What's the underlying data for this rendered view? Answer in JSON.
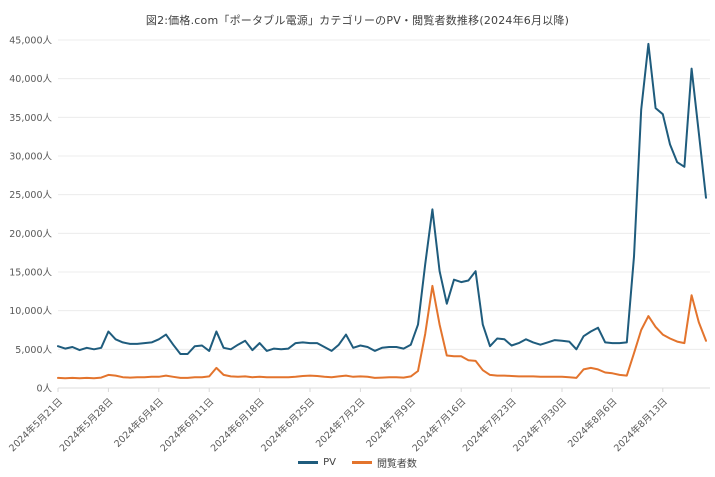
{
  "title": "図2:価格.com「ポータブル電源」カテゴリーのPV・閲覧者数推移(2024年6月以降)",
  "colors": {
    "pv_line": "#1f5c7d",
    "viewers_line": "#e3742d",
    "grid": "#ececec",
    "axis_line": "#dcdcdc",
    "tick_mark": "#d9d9d9",
    "axis_text": "#595959",
    "title_text": "#3f3f3f"
  },
  "legend": {
    "items": [
      {
        "label": "PV"
      },
      {
        "label": "閲覧者数"
      }
    ]
  },
  "chart_data": {
    "type": "line",
    "grid": "horizontal",
    "legend_position": "bottom-center",
    "ylim": [
      0,
      45000
    ],
    "y_tick_step": 5000,
    "y_tick_labels": [
      "0人",
      "5,000人",
      "10,000人",
      "15,000人",
      "20,000人",
      "25,000人",
      "30,000人",
      "35,000人",
      "40,000人",
      "45,000人"
    ],
    "x_tick_labels": [
      "2024年5月21日",
      "2024年5月28日",
      "2024年6月4日",
      "2024年6月11日",
      "2024年6月18日",
      "2024年6月25日",
      "2024年7月2日",
      "2024年7月9日",
      "2024年7月16日",
      "2024年7月23日",
      "2024年7月30日",
      "2024年8月6日",
      "2024年8月13日"
    ],
    "x_points_per_tick": 7,
    "x_unit": "day",
    "series": [
      {
        "name": "PV",
        "color": "#1f5c7d",
        "values": [
          5400,
          5100,
          5300,
          4900,
          5200,
          5000,
          5200,
          7300,
          6300,
          5900,
          5700,
          5700,
          5800,
          5900,
          6300,
          6900,
          5600,
          4400,
          4400,
          5400,
          5500,
          4800,
          7300,
          5200,
          5000,
          5600,
          6100,
          4900,
          5800,
          4800,
          5100,
          5000,
          5100,
          5800,
          5900,
          5800,
          5800,
          5300,
          4800,
          5600,
          6900,
          5200,
          5500,
          5300,
          4800,
          5200,
          5300,
          5300,
          5100,
          5600,
          8200,
          16000,
          23100,
          15100,
          10900,
          14000,
          13700,
          13900,
          15100,
          8200,
          5400,
          6400,
          6300,
          5500,
          5800,
          6300,
          5900,
          5600,
          5900,
          6200,
          6100,
          6000,
          5000,
          6700,
          7300,
          7800,
          5900,
          5800,
          5800,
          5900,
          17000,
          36000,
          44500,
          36200,
          35400,
          31500,
          29200,
          28600,
          41300,
          33000,
          24600
        ]
      },
      {
        "name": "閲覧者数",
        "color": "#e3742d",
        "values": [
          1300,
          1250,
          1300,
          1250,
          1300,
          1250,
          1350,
          1700,
          1600,
          1400,
          1350,
          1400,
          1400,
          1450,
          1450,
          1600,
          1450,
          1300,
          1300,
          1400,
          1400,
          1500,
          2600,
          1700,
          1500,
          1450,
          1500,
          1400,
          1450,
          1400,
          1400,
          1400,
          1400,
          1450,
          1550,
          1600,
          1550,
          1450,
          1400,
          1500,
          1600,
          1450,
          1500,
          1450,
          1300,
          1350,
          1400,
          1400,
          1350,
          1500,
          2200,
          7000,
          13200,
          8200,
          4200,
          4100,
          4100,
          3600,
          3500,
          2300,
          1700,
          1600,
          1600,
          1550,
          1500,
          1500,
          1500,
          1450,
          1450,
          1450,
          1450,
          1400,
          1300,
          2400,
          2600,
          2400,
          2000,
          1900,
          1700,
          1600,
          4500,
          7500,
          9300,
          7900,
          6900,
          6400,
          6000,
          5800,
          12000,
          8500,
          6100
        ]
      }
    ]
  }
}
